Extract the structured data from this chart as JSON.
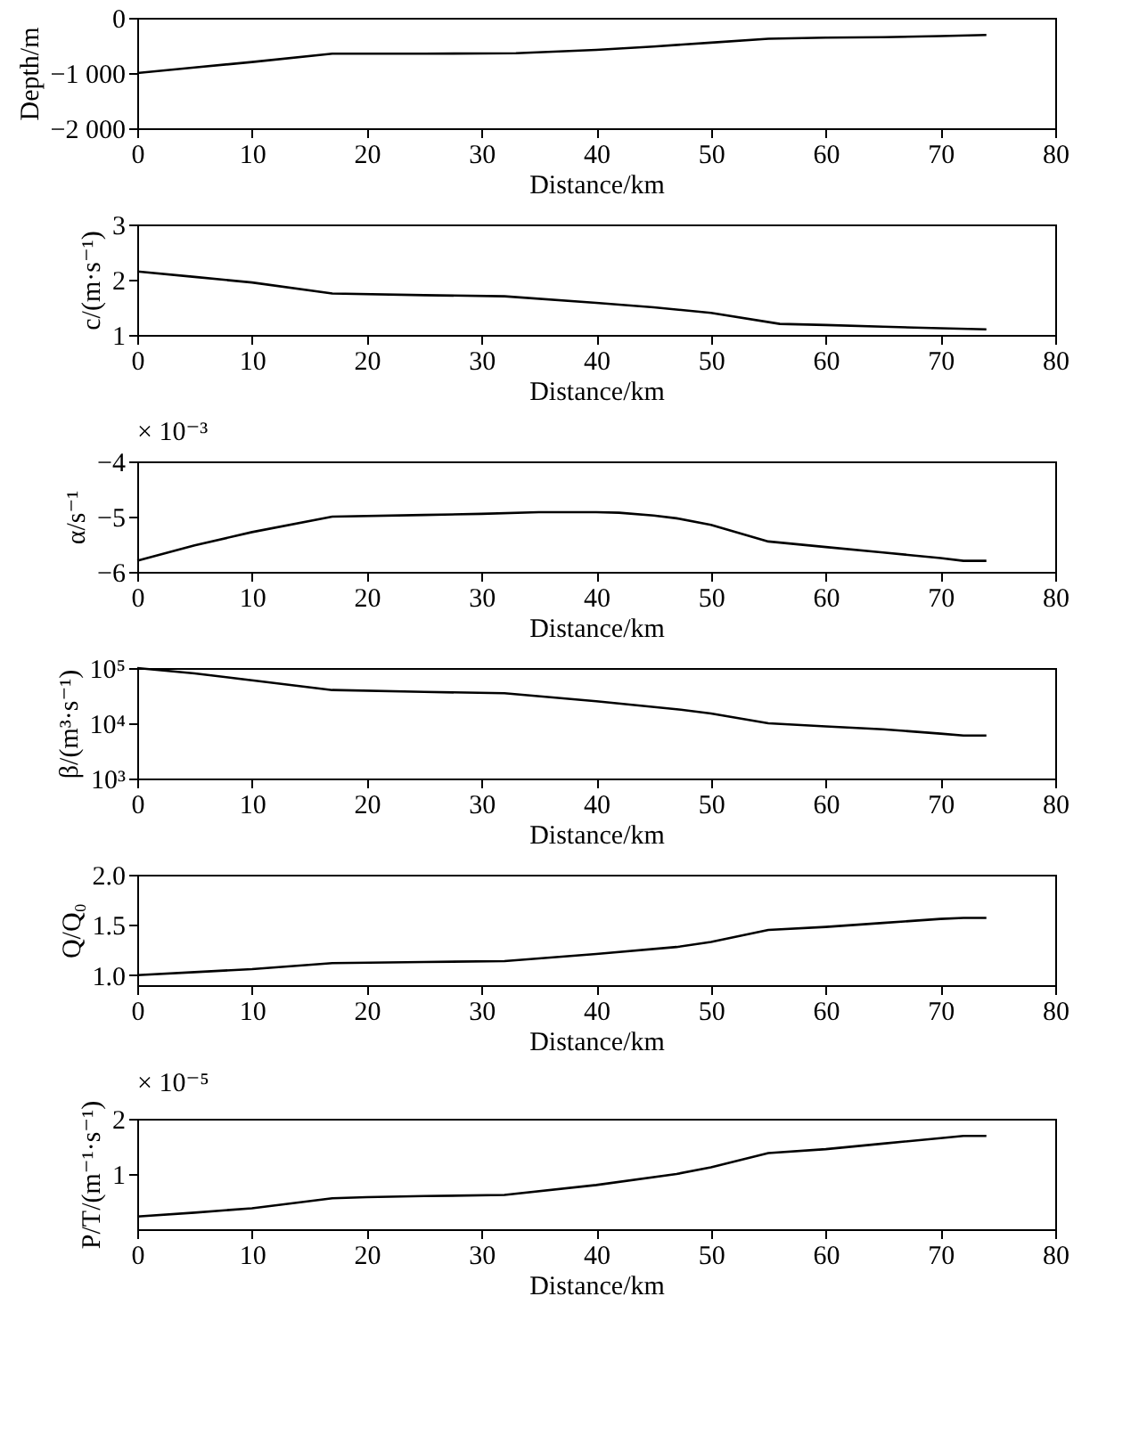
{
  "chart_data": [
    {
      "type": "line",
      "xlabel": "Distance/km",
      "ylabel": "Depth/m",
      "color": "#000000",
      "x": [
        0,
        5,
        10,
        17,
        25,
        33,
        40,
        45,
        50,
        55,
        60,
        65,
        70,
        74
      ],
      "values": [
        -1000,
        -900,
        -800,
        -650,
        -650,
        -640,
        -580,
        -520,
        -450,
        -380,
        -360,
        -350,
        -330,
        -310
      ],
      "xlim": [
        0,
        80
      ],
      "xticks": [
        0,
        10,
        20,
        30,
        40,
        50,
        60,
        70,
        80
      ],
      "ylim": [
        -2000,
        0
      ],
      "yticks": [
        {
          "value": -2000,
          "label": "−2 000"
        },
        {
          "value": -1000,
          "label": "−1 000"
        },
        0
      ],
      "grid": false
    },
    {
      "type": "line",
      "xlabel": "Distance/km",
      "ylabel": "c/(m·s⁻¹)",
      "color": "#000000",
      "x": [
        0,
        5,
        10,
        17,
        25,
        32,
        40,
        45,
        50,
        56,
        60,
        65,
        70,
        74
      ],
      "values": [
        2.15,
        2.05,
        1.95,
        1.75,
        1.72,
        1.7,
        1.58,
        1.5,
        1.4,
        1.2,
        1.18,
        1.15,
        1.12,
        1.1
      ],
      "xlim": [
        0,
        80
      ],
      "xticks": [
        0,
        10,
        20,
        30,
        40,
        50,
        60,
        70,
        80
      ],
      "ylim": [
        1,
        3
      ],
      "yticks": [
        1,
        2,
        3
      ],
      "grid": false
    },
    {
      "type": "line",
      "xlabel": "Distance/km",
      "ylabel": "α/s⁻¹",
      "annotations": [
        "× 10⁻³"
      ],
      "color": "#000000",
      "x": [
        0,
        5,
        10,
        17,
        25,
        30,
        35,
        40,
        42,
        45,
        47,
        50,
        55,
        60,
        65,
        70,
        72,
        74
      ],
      "values": [
        -5.8,
        -5.52,
        -5.28,
        -5.0,
        -4.97,
        -4.95,
        -4.92,
        -4.92,
        -4.93,
        -4.98,
        -5.03,
        -5.15,
        -5.45,
        -5.55,
        -5.65,
        -5.75,
        -5.8,
        -5.8
      ],
      "xlim": [
        0,
        80
      ],
      "xticks": [
        0,
        10,
        20,
        30,
        40,
        50,
        60,
        70,
        80
      ],
      "ylim": [
        -6,
        -4
      ],
      "yticks": [
        {
          "value": -6,
          "label": "−6"
        },
        {
          "value": -5,
          "label": "−5"
        },
        {
          "value": -4,
          "label": "−4"
        }
      ],
      "grid": false
    },
    {
      "type": "line",
      "xlabel": "Distance/km",
      "ylabel": "β/(m³·s⁻¹)",
      "color": "#000000",
      "log": true,
      "x": [
        0,
        5,
        10,
        17,
        25,
        32,
        40,
        47,
        50,
        55,
        60,
        65,
        70,
        72,
        74
      ],
      "values": [
        100000,
        80000,
        60000,
        40000,
        37000,
        35000,
        25000,
        18000,
        15000,
        10000,
        8800,
        7800,
        6500,
        6000,
        6000
      ],
      "xlim": [
        0,
        80
      ],
      "xticks": [
        0,
        10,
        20,
        30,
        40,
        50,
        60,
        70,
        80
      ],
      "ylim": [
        1000,
        100000
      ],
      "yticks": [
        {
          "value": 1000,
          "label": "10³"
        },
        {
          "value": 10000,
          "label": "10⁴"
        },
        {
          "value": 100000,
          "label": "10⁵"
        }
      ],
      "grid": false
    },
    {
      "type": "line",
      "xlabel": "Distance/km",
      "ylabel": "Q/Q₀",
      "color": "#000000",
      "x": [
        0,
        5,
        10,
        17,
        25,
        32,
        40,
        47,
        50,
        55,
        60,
        65,
        70,
        72,
        74
      ],
      "values": [
        1.0,
        1.03,
        1.06,
        1.12,
        1.13,
        1.14,
        1.21,
        1.28,
        1.33,
        1.45,
        1.48,
        1.52,
        1.56,
        1.57,
        1.57
      ],
      "xlim": [
        0,
        80
      ],
      "xticks": [
        0,
        10,
        20,
        30,
        40,
        50,
        60,
        70,
        80
      ],
      "ylim": [
        0.9,
        2.0
      ],
      "yticks": [
        {
          "value": 1,
          "label": "1.0"
        },
        {
          "value": 1.5,
          "label": "1.5"
        },
        {
          "value": 2,
          "label": "2.0"
        }
      ],
      "grid": false
    },
    {
      "type": "line",
      "xlabel": "Distance/km",
      "ylabel": "P/T/(m⁻¹·s⁻¹)",
      "annotations": [
        "× 10⁻⁵"
      ],
      "color": "#000000",
      "x": [
        0,
        5,
        10,
        17,
        20,
        25,
        32,
        40,
        47,
        50,
        55,
        60,
        65,
        70,
        72,
        74
      ],
      "values": [
        0.23,
        0.3,
        0.38,
        0.56,
        0.58,
        0.6,
        0.62,
        0.8,
        1.0,
        1.12,
        1.38,
        1.45,
        1.55,
        1.65,
        1.69,
        1.69
      ],
      "xlim": [
        0,
        80
      ],
      "xticks": [
        0,
        10,
        20,
        30,
        40,
        50,
        60,
        70,
        80
      ],
      "ylim": [
        0,
        2
      ],
      "yticks": [
        1,
        2
      ],
      "grid": false
    }
  ]
}
